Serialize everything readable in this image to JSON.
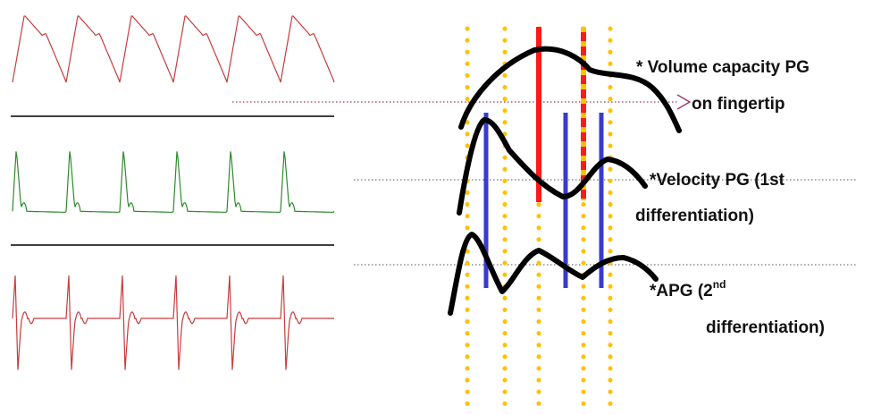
{
  "labels": {
    "volume_line1": "* Volume capacity PG",
    "volume_line2": "on fingertip",
    "velocity_line1": "*Velocity PG (1st",
    "velocity_line2": "differentiation)",
    "apg_prefix": "*APG (2",
    "apg_sup": "nd",
    "apg_line2": "differentiation)"
  },
  "colors": {
    "waveform_top": "#c83c3c",
    "waveform_middle": "#2e8b2e",
    "waveform_bottom": "#c83c3c",
    "dotted_markers": "#ffc000",
    "red_markers": "#ff1a1a",
    "blue_markers": "#3a3acc",
    "curves": "#000000",
    "guide_arrow": "#9a3a5a"
  }
}
